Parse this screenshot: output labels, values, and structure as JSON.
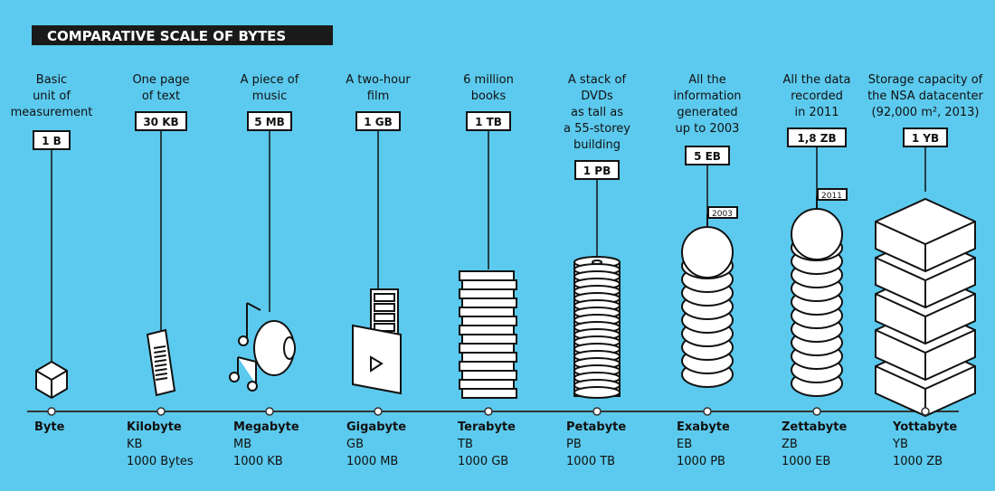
{
  "title": "COMPARATIVE SCALE OF BYTES",
  "units": [
    {
      "description": [
        "Basic",
        "unit of",
        "measurement"
      ],
      "size": "1 B",
      "name": "Byte"
    },
    {
      "description": [
        "One page",
        "of text"
      ],
      "size": "30 KB",
      "name": "Kilobyte",
      "abbr": "KB",
      "equivalent": "1000 Bytes"
    },
    {
      "description": [
        "A piece of",
        "music"
      ],
      "size": "5 MB",
      "name": "Megabyte",
      "abbr": "MB",
      "equivalent": "1000 KB"
    },
    {
      "description": [
        "A two-hour",
        "film"
      ],
      "size": "1 GB",
      "name": "Gigabyte",
      "abbr": "GB",
      "equivalent": "1000 MB"
    },
    {
      "description": [
        "6 million",
        "books"
      ],
      "size": "1 TB",
      "name": "Terabyte",
      "abbr": "TB",
      "equivalent": "1000 GB"
    },
    {
      "description": [
        "A stack of",
        "DVDs",
        "as tall as",
        "a 55-storey",
        "building"
      ],
      "size": "1 PB",
      "name": "Petabyte",
      "abbr": "PB",
      "equivalent": "1000 TB"
    },
    {
      "description": [
        "All the",
        "information",
        "generated",
        "up to 2003"
      ],
      "size": "5 EB",
      "name": "Exabyte",
      "abbr": "EB",
      "equivalent": "1000 PB",
      "flag": "2003"
    },
    {
      "description": [
        "All the data",
        "recorded",
        "in 2011"
      ],
      "size": "1,8 ZB",
      "name": "Zettabyte",
      "abbr": "ZB",
      "equivalent": "1000 EB",
      "flag": "2011"
    },
    {
      "description": [
        "Storage capacity of",
        "the NSA datacenter",
        "(92,000 m², 2013)"
      ],
      "size": "1 YB",
      "name": "Yottabyte",
      "abbr": "YB",
      "equivalent": "1000 ZB"
    }
  ]
}
